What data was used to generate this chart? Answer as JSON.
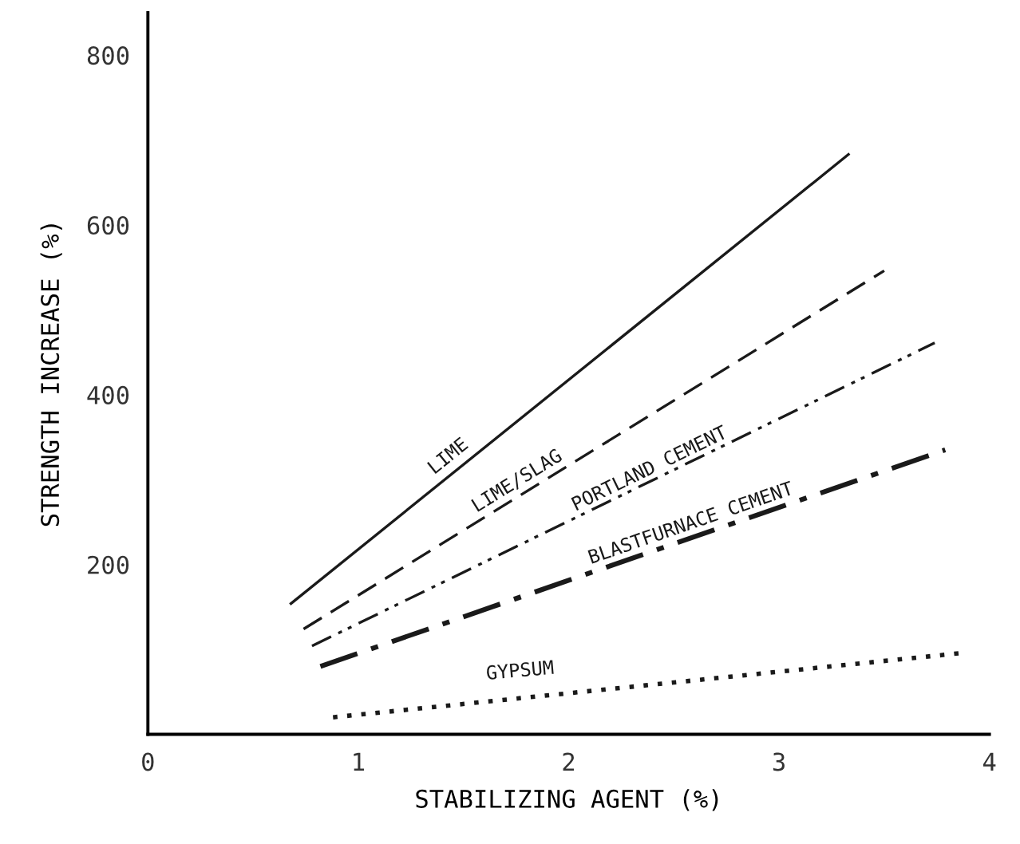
{
  "chart_data": {
    "type": "line",
    "xlabel": "STABILIZING AGENT (%)",
    "ylabel": "STRENGTH INCREASE (%)",
    "xlim": [
      0,
      4
    ],
    "ylim": [
      0,
      850
    ],
    "xticks": [
      0,
      1,
      2,
      3,
      4
    ],
    "yticks": [
      200,
      400,
      600,
      800
    ],
    "grid": false,
    "legend": false,
    "marker": "none",
    "series": [
      {
        "name": "LIME",
        "color": "#1a1a1a",
        "line_style": "solid",
        "x": [
          0.68,
          3.33
        ],
        "values": [
          154,
          683
        ]
      },
      {
        "name": "LIME/SLAG",
        "color": "#1a1a1a",
        "line_style": "dashed",
        "x": [
          0.74,
          3.5
        ],
        "values": [
          124,
          546
        ]
      },
      {
        "name": "PORTLAND CEMENT",
        "color": "#1a1a1a",
        "line_style": "dashdotdot",
        "x": [
          0.78,
          3.74
        ],
        "values": [
          104,
          461
        ]
      },
      {
        "name": "BLASTFURNACE CEMENT",
        "color": "#1a1a1a",
        "line_style": "dashdot",
        "x": [
          0.82,
          3.79
        ],
        "values": [
          80,
          335
        ]
      },
      {
        "name": "GYPSUM",
        "color": "#1a1a1a",
        "line_style": "dotted",
        "x": [
          0.88,
          3.88
        ],
        "values": [
          20,
          96
        ]
      }
    ]
  }
}
